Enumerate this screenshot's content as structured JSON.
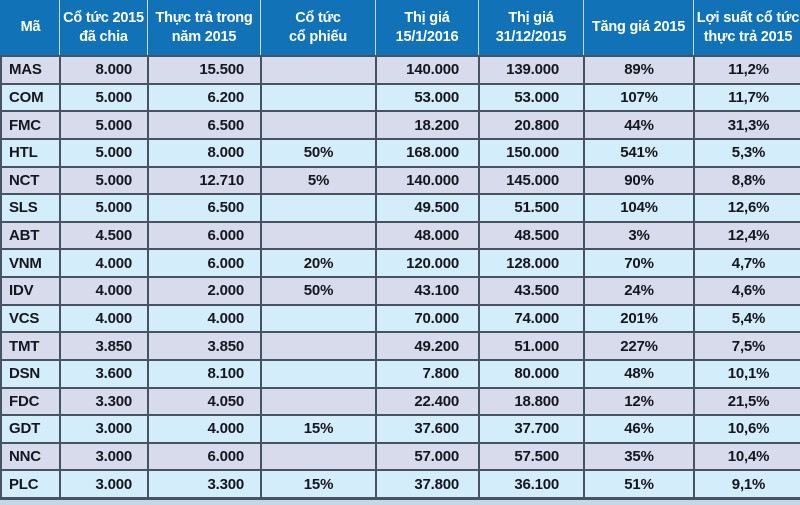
{
  "chart_data": {
    "type": "table",
    "columns": [
      {
        "key": "ma",
        "label": "Mã"
      },
      {
        "key": "co_tuc_da_chia",
        "label": "Cổ tức 2015\nđã chia"
      },
      {
        "key": "thuc_tra_2015",
        "label": "Thực trả trong\nnăm 2015"
      },
      {
        "key": "co_tuc_co_phieu",
        "label": "Cổ tức\ncổ phiếu"
      },
      {
        "key": "thi_gia_15_1_2016",
        "label": "Thị giá\n15/1/2016"
      },
      {
        "key": "thi_gia_31_12_2015",
        "label": "Thị giá\n31/12/2015"
      },
      {
        "key": "tang_gia_2015",
        "label": "Tăng giá 2015"
      },
      {
        "key": "loi_suat_co_tuc",
        "label": "Lợi suất cổ tức\nthực trả 2015"
      }
    ],
    "rows": [
      [
        "MAS",
        "8.000",
        "15.500",
        "",
        "140.000",
        "139.000",
        "89%",
        "11,2%"
      ],
      [
        "COM",
        "5.000",
        "6.200",
        "",
        "53.000",
        "53.000",
        "107%",
        "11,7%"
      ],
      [
        "FMC",
        "5.000",
        "6.500",
        "",
        "18.200",
        "20.800",
        "44%",
        "31,3%"
      ],
      [
        "HTL",
        "5.000",
        "8.000",
        "50%",
        "168.000",
        "150.000",
        "541%",
        "5,3%"
      ],
      [
        "NCT",
        "5.000",
        "12.710",
        "5%",
        "140.000",
        "145.000",
        "90%",
        "8,8%"
      ],
      [
        "SLS",
        "5.000",
        "6.500",
        "",
        "49.500",
        "51.500",
        "104%",
        "12,6%"
      ],
      [
        "ABT",
        "4.500",
        "6.000",
        "",
        "48.000",
        "48.500",
        "3%",
        "12,4%"
      ],
      [
        "VNM",
        "4.000",
        "6.000",
        "20%",
        "120.000",
        "128.000",
        "70%",
        "4,7%"
      ],
      [
        "IDV",
        "4.000",
        "2.000",
        "50%",
        "43.100",
        "43.500",
        "24%",
        "4,6%"
      ],
      [
        "VCS",
        "4.000",
        "4.000",
        "",
        "70.000",
        "74.000",
        "201%",
        "5,4%"
      ],
      [
        "TMT",
        "3.850",
        "3.850",
        "",
        "49.200",
        "51.000",
        "227%",
        "7,5%"
      ],
      [
        "DSN",
        "3.600",
        "8.100",
        "",
        "7.800",
        "80.000",
        "48%",
        "10,1%"
      ],
      [
        "FDC",
        "3.300",
        "4.050",
        "",
        "22.400",
        "18.800",
        "12%",
        "21,5%"
      ],
      [
        "GDT",
        "3.000",
        "4.000",
        "15%",
        "37.600",
        "37.700",
        "46%",
        "10,6%"
      ],
      [
        "NNC",
        "3.000",
        "6.000",
        "",
        "57.000",
        "57.500",
        "35%",
        "10,4%"
      ],
      [
        "PLC",
        "3.000",
        "3.300",
        "15%",
        "37.800",
        "36.100",
        "51%",
        "9,1%"
      ]
    ]
  },
  "colors": {
    "header_bg": "#1272b8",
    "header_text": "#ffffff",
    "row_lavender": "#d8dbec",
    "row_light_blue": "#d3edfb",
    "border": "#465360",
    "cell_text": "#16161f",
    "bottom_bar": "#c2d8e6"
  }
}
